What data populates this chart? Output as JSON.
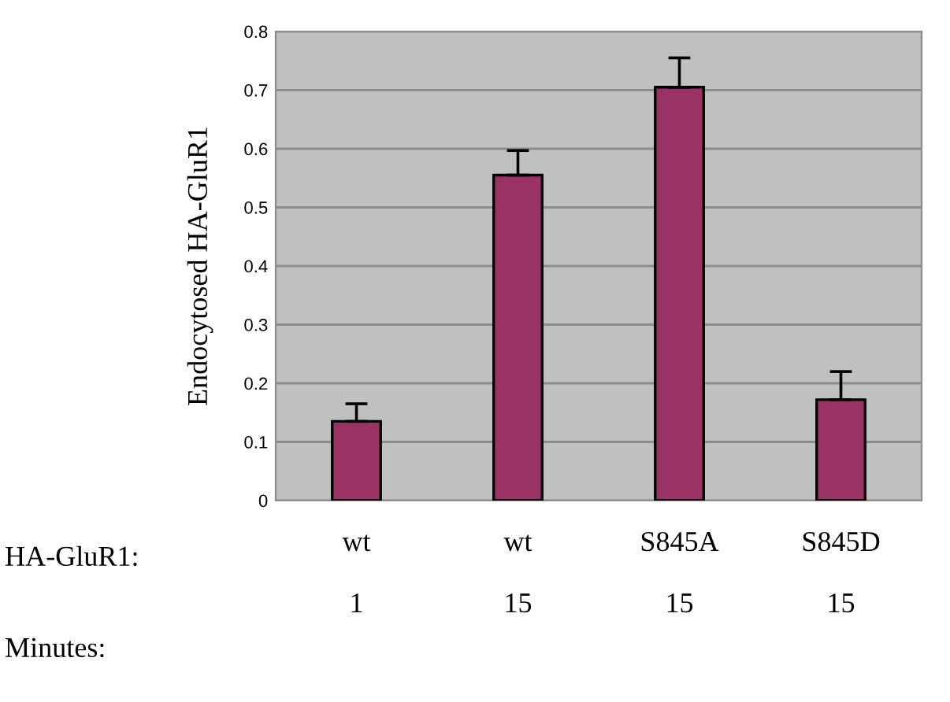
{
  "chart_data": {
    "type": "bar",
    "ylabel": "Endocytosed HA-GluR1",
    "categories": [
      "wt\n\n1",
      "wt\n\n15",
      "S845A\n\n15",
      "S845D\n\n15"
    ],
    "values": [
      0.135,
      0.555,
      0.705,
      0.172
    ],
    "errors": [
      [
        0.135,
        0.165
      ],
      [
        0.555,
        0.597
      ],
      [
        0.705,
        0.755
      ],
      [
        0.172,
        0.22
      ]
    ],
    "color": "#993366",
    "ylim": [
      0,
      0.8
    ],
    "yticks": [
      0,
      0.1,
      0.2,
      0.3,
      0.4,
      0.5,
      0.6,
      0.7,
      0.8
    ],
    "grid": "y",
    "legend": false,
    "annotations": [
      "HA-GluR1:",
      "Minutes:"
    ]
  }
}
